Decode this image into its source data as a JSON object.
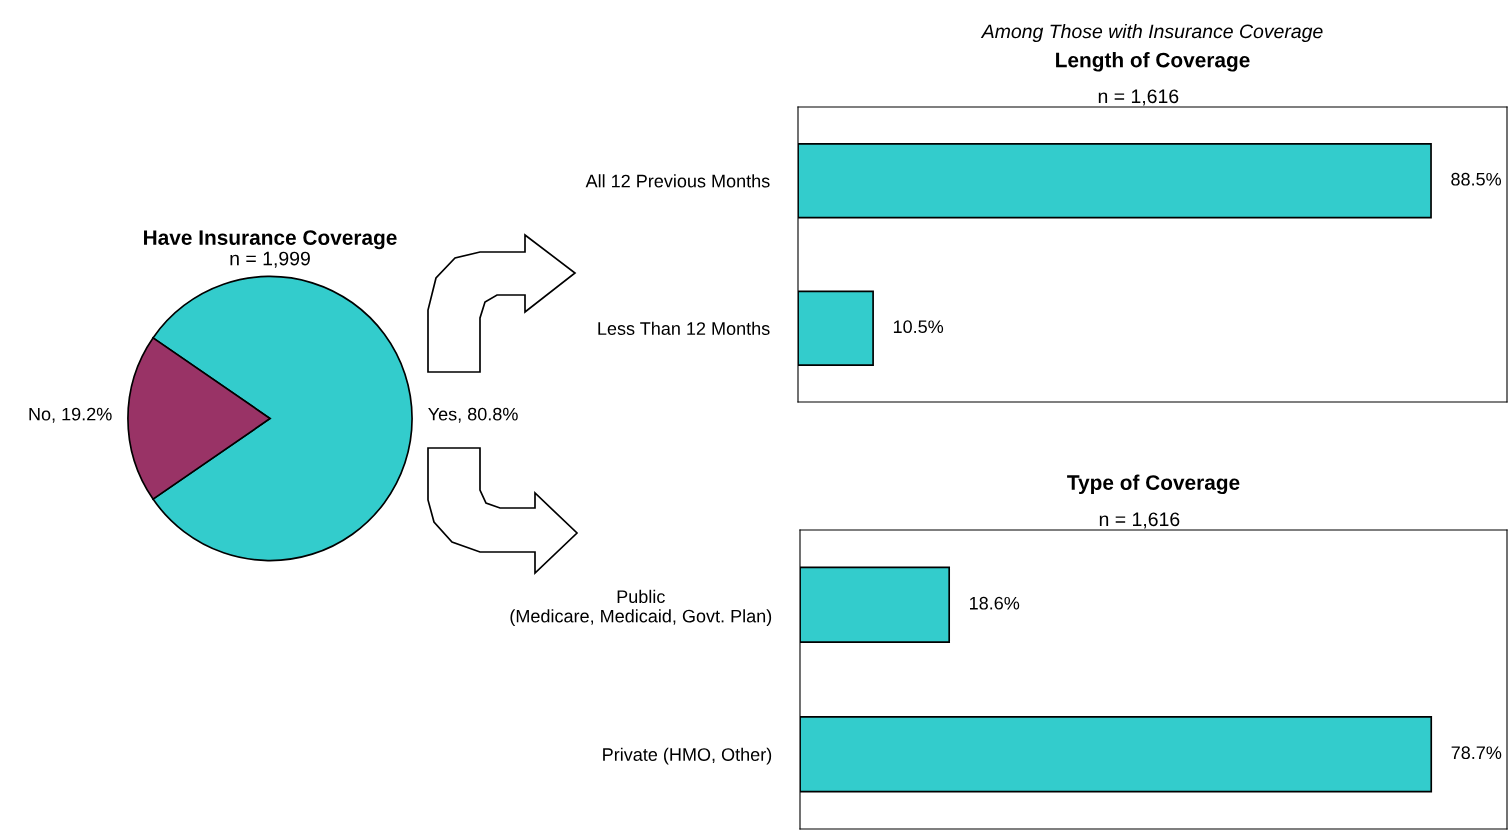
{
  "chart_data": [
    {
      "type": "pie",
      "title": "Have Insurance Coverage",
      "subtitle": "n = 1,999",
      "categories": [
        "Yes",
        "No"
      ],
      "values": [
        80.8,
        19.2
      ],
      "value_labels": [
        "80.8%",
        "19.2%"
      ],
      "colors": [
        "#33cccc",
        "#993366"
      ]
    },
    {
      "type": "bar",
      "orientation": "horizontal",
      "annotations": [
        "Among Those with Insurance Coverage"
      ],
      "title": "Length of Coverage",
      "subtitle": "n = 1,616",
      "categories": [
        "All 12 Previous Months",
        "Less Than 12 Months"
      ],
      "values": [
        88.5,
        10.5
      ],
      "value_labels": [
        "88.5%",
        "10.5%"
      ],
      "color": "#33cccc"
    },
    {
      "type": "bar",
      "orientation": "horizontal",
      "title": "Type of Coverage",
      "subtitle": "n = 1,616",
      "categories": [
        "Public\n(Medicare, Medicaid, Govt. Plan)",
        "Private (HMO, Other)"
      ],
      "values": [
        18.6,
        78.7
      ],
      "value_labels": [
        "18.6%",
        "78.7%"
      ],
      "color": "#33cccc"
    }
  ]
}
